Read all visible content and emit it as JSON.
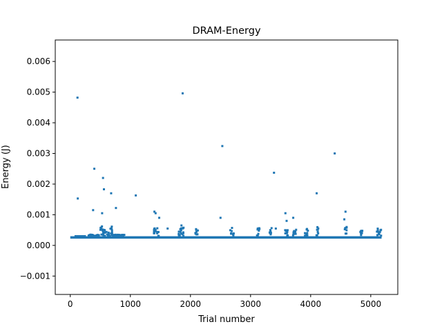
{
  "chart_data": {
    "type": "scatter",
    "title": "DRAM-Energy",
    "xlabel": "Trial number",
    "ylabel": "Energy (J)",
    "xlim": [
      -250,
      5450
    ],
    "ylim": [
      -0.0016,
      0.0067
    ],
    "xticks": [
      0,
      1000,
      2000,
      3000,
      4000,
      5000
    ],
    "xtick_labels": [
      "0",
      "1000",
      "2000",
      "3000",
      "4000",
      "5000"
    ],
    "yticks": [
      -0.001,
      0.0,
      0.001,
      0.002,
      0.003,
      0.004,
      0.005,
      0.006
    ],
    "ytick_labels": [
      "−0.001",
      "0.000",
      "0.001",
      "0.002",
      "0.003",
      "0.004",
      "0.005",
      "0.006"
    ],
    "grid": false,
    "legend": "none",
    "color": "#1f77b4",
    "baseline": {
      "x_start": 0,
      "x_end": 5180,
      "y_low": 0.00022,
      "y_high": 0.0003
    },
    "clusters": [
      {
        "x_start": 80,
        "x_end": 250,
        "y_max": 0.0003
      },
      {
        "x_start": 300,
        "x_end": 480,
        "y_max": 0.00035
      },
      {
        "x_start": 500,
        "x_end": 700,
        "y_max": 0.00062
      },
      {
        "x_start": 700,
        "x_end": 900,
        "y_max": 0.00035
      },
      {
        "x_start": 1380,
        "x_end": 1480,
        "y_max": 0.0006
      },
      {
        "x_start": 1780,
        "x_end": 1900,
        "y_max": 0.0006
      },
      {
        "x_start": 2080,
        "x_end": 2130,
        "y_max": 0.0006
      },
      {
        "x_start": 2660,
        "x_end": 2720,
        "y_max": 0.0006
      },
      {
        "x_start": 3100,
        "x_end": 3160,
        "y_max": 0.0006
      },
      {
        "x_start": 3300,
        "x_end": 3350,
        "y_max": 0.0006
      },
      {
        "x_start": 3550,
        "x_end": 3620,
        "y_max": 0.0005
      },
      {
        "x_start": 3700,
        "x_end": 3760,
        "y_max": 0.0006
      },
      {
        "x_start": 3900,
        "x_end": 3960,
        "y_max": 0.00055
      },
      {
        "x_start": 4090,
        "x_end": 4130,
        "y_max": 0.0006
      },
      {
        "x_start": 4560,
        "x_end": 4610,
        "y_max": 0.0006
      },
      {
        "x_start": 4820,
        "x_end": 4860,
        "y_max": 0.0005
      },
      {
        "x_start": 5100,
        "x_end": 5180,
        "y_max": 0.0006
      }
    ],
    "points": [
      {
        "x": 120,
        "y": 0.00482
      },
      {
        "x": 125,
        "y": 0.00153
      },
      {
        "x": 380,
        "y": 0.00115
      },
      {
        "x": 400,
        "y": 0.0025
      },
      {
        "x": 530,
        "y": 0.00105
      },
      {
        "x": 545,
        "y": 0.0022
      },
      {
        "x": 560,
        "y": 0.00183
      },
      {
        "x": 680,
        "y": 0.0017
      },
      {
        "x": 760,
        "y": 0.00122
      },
      {
        "x": 1090,
        "y": 0.00163
      },
      {
        "x": 1400,
        "y": 0.0011
      },
      {
        "x": 1420,
        "y": 0.00105
      },
      {
        "x": 1480,
        "y": 0.0009
      },
      {
        "x": 1620,
        "y": 0.00055
      },
      {
        "x": 1850,
        "y": 0.00065
      },
      {
        "x": 1870,
        "y": 0.00496
      },
      {
        "x": 2500,
        "y": 0.0009
      },
      {
        "x": 2530,
        "y": 0.00324
      },
      {
        "x": 3390,
        "y": 0.00237
      },
      {
        "x": 3420,
        "y": 0.00055
      },
      {
        "x": 3580,
        "y": 0.00105
      },
      {
        "x": 3600,
        "y": 0.0008
      },
      {
        "x": 3710,
        "y": 0.0009
      },
      {
        "x": 4100,
        "y": 0.0017
      },
      {
        "x": 4400,
        "y": 0.003
      },
      {
        "x": 4580,
        "y": 0.0011
      },
      {
        "x": 4560,
        "y": 0.00085
      }
    ]
  }
}
